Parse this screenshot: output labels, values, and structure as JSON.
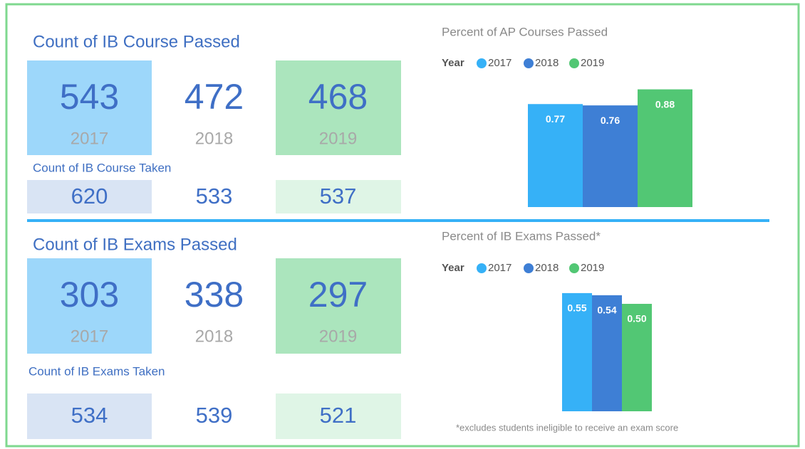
{
  "kpis": [
    {
      "title": "Count of IB Course Passed",
      "passed": [
        543,
        472,
        468
      ],
      "years": [
        "2017",
        "2018",
        "2019"
      ],
      "taken_title": "Count of IB Course Taken",
      "taken": [
        620,
        533,
        537
      ]
    },
    {
      "title": "Count of IB Exams Passed",
      "passed": [
        303,
        338,
        297
      ],
      "years": [
        "2017",
        "2018",
        "2019"
      ],
      "taken_title": "Count of IB Exams Taken",
      "taken": [
        534,
        539,
        521
      ]
    }
  ],
  "chart_data": [
    {
      "type": "bar",
      "title": "Percent of AP Courses Passed",
      "legend_title": "Year",
      "categories": [
        "2017",
        "2018",
        "2019"
      ],
      "colors": [
        "#36b1f7",
        "#3e7fd5",
        "#52c774"
      ],
      "values": [
        0.77,
        0.76,
        0.88
      ],
      "ylim": [
        0,
        1
      ]
    },
    {
      "type": "bar",
      "title": "Percent of IB Exams Passed*",
      "legend_title": "Year",
      "categories": [
        "2017",
        "2018",
        "2019"
      ],
      "colors": [
        "#36b1f7",
        "#3e7fd5",
        "#52c774"
      ],
      "values": [
        0.55,
        0.54,
        0.5
      ],
      "value_labels": [
        "0.55",
        "0.54",
        "0.50"
      ],
      "ylim": [
        0,
        1
      ],
      "note": "*excludes students ineligible to receive an exam score"
    }
  ]
}
